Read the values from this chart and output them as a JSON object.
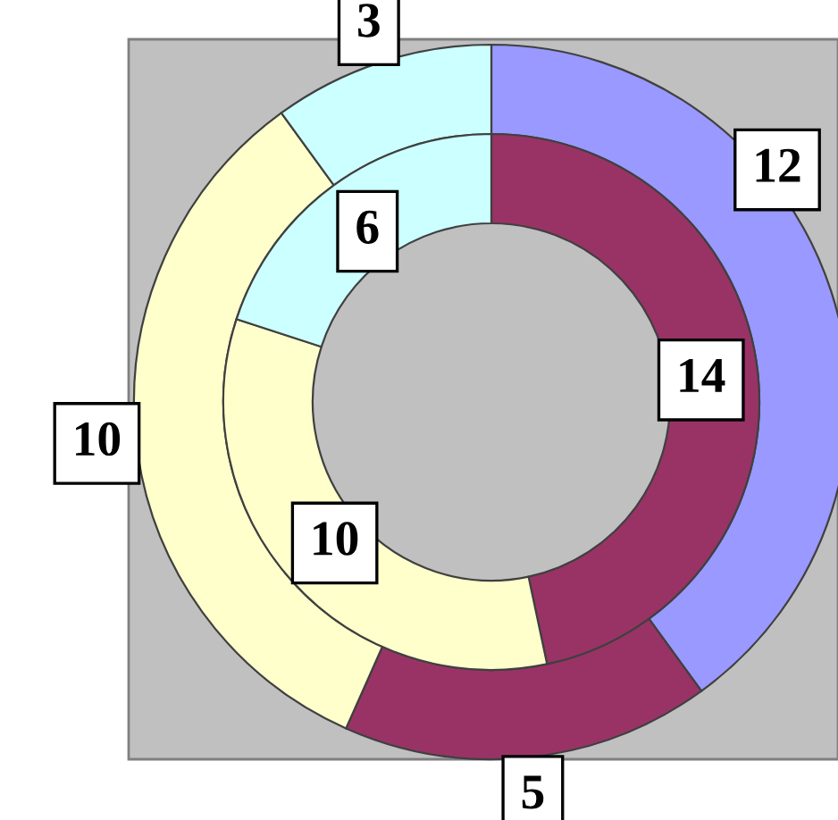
{
  "chart_data": {
    "type": "donut",
    "categories": [
      null,
      null,
      null,
      null
    ],
    "series": [
      {
        "values": [
          12,
          5,
          10,
          3
        ],
        "colors": [
          "#9999ff",
          "#993366",
          "#ffffcc",
          "#ccffff"
        ]
      },
      {
        "values": [
          null,
          14,
          10,
          6
        ],
        "colors": [
          "#9999ff",
          "#993366",
          "#ffffcc",
          "#ccffff"
        ]
      }
    ],
    "data_labels": true
  }
}
